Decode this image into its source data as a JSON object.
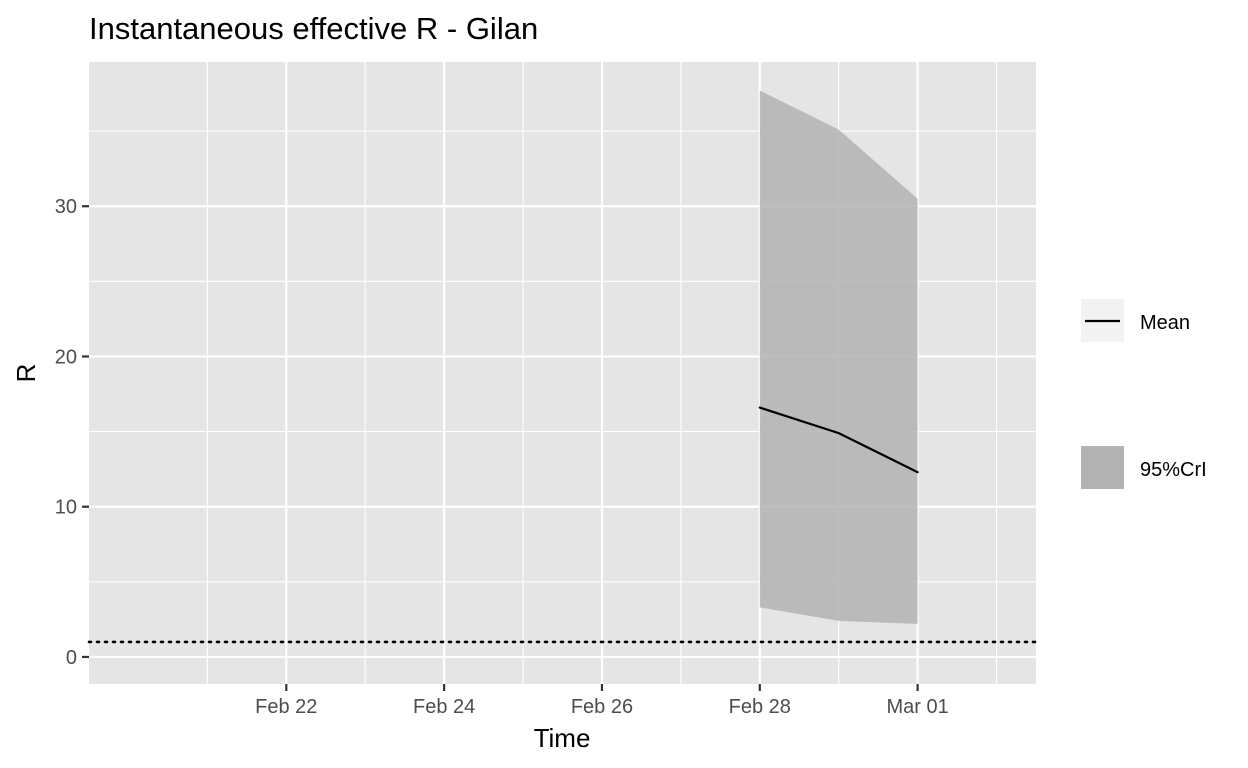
{
  "chart_data": {
    "type": "line",
    "title": "Instantaneous effective R -  Gilan",
    "xlabel": "Time",
    "ylabel": "R",
    "x_dates": [
      "Feb 28",
      "Feb 29",
      "Mar 01"
    ],
    "x_ticks": [
      "Feb 22",
      "Feb 24",
      "Feb 26",
      "Feb 28",
      "Mar 01"
    ],
    "x_range": [
      "Feb 20",
      "Mar 02"
    ],
    "y_ticks": [
      "0",
      "10",
      "20",
      "30"
    ],
    "ylim": [
      -1.8,
      39.6
    ],
    "series": [
      {
        "name": "Mean",
        "values": [
          16.6,
          14.9,
          12.3
        ]
      }
    ],
    "band": {
      "name": "95%CrI",
      "lower": [
        3.3,
        2.4,
        2.2
      ],
      "upper": [
        37.7,
        35.1,
        30.5
      ]
    },
    "reference_line": {
      "y": 1,
      "style": "dotted"
    },
    "grid": true,
    "legend_position": "right",
    "colors": {
      "panel_background": "#e5e5e5",
      "grid": "#ffffff",
      "band_fill": "#b3b3b3",
      "line": "#000000",
      "legend_key_background": "#f2f2f2"
    }
  }
}
